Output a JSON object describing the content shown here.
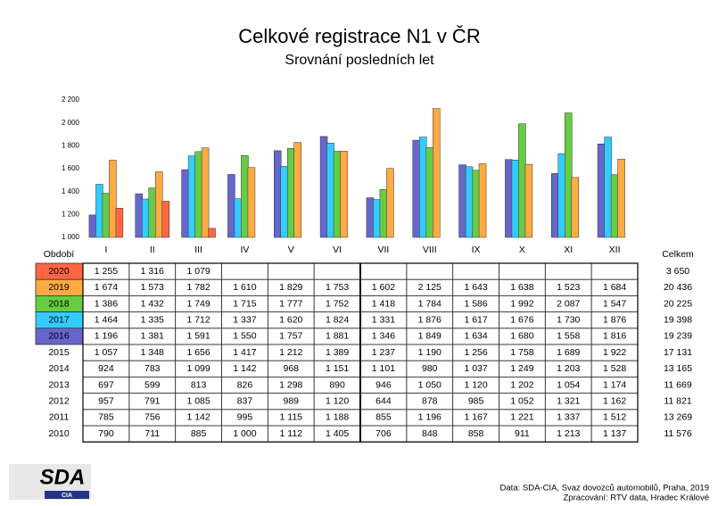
{
  "chart_data": {
    "type": "bar",
    "title": "Celkové registrace N1 v ČR",
    "subtitle": "Srovnání posledních let",
    "categories": [
      "I",
      "II",
      "III",
      "IV",
      "V",
      "VI",
      "VII",
      "VIII",
      "IX",
      "X",
      "XI",
      "XII"
    ],
    "ylim": [
      1000,
      2200
    ],
    "yticks": [
      {
        "value": 1000,
        "label": "1 000"
      },
      {
        "value": 1200,
        "label": "1 200"
      },
      {
        "value": 1400,
        "label": "1 400"
      },
      {
        "value": 1600,
        "label": "1 600"
      },
      {
        "value": 1800,
        "label": "1 800"
      },
      {
        "value": 2000,
        "label": "2 000"
      },
      {
        "value": 2200,
        "label": "2 200"
      }
    ],
    "series": [
      {
        "name": "2016",
        "color": "#6666cc",
        "values": [
          1196,
          1381,
          1591,
          1550,
          1757,
          1881,
          1346,
          1849,
          1634,
          1680,
          1558,
          1816
        ],
        "value_labels": [
          "1 196",
          "1 381",
          "1 591",
          "1 550",
          "1 757",
          "1 881",
          "1 346",
          "1 849",
          "1 634",
          "1 680",
          "1 558",
          "1 816"
        ],
        "total": "19 239"
      },
      {
        "name": "2017",
        "color": "#33ccff",
        "values": [
          1464,
          1335,
          1712,
          1337,
          1620,
          1824,
          1331,
          1876,
          1617,
          1676,
          1730,
          1876
        ],
        "value_labels": [
          "1 464",
          "1 335",
          "1 712",
          "1 337",
          "1 620",
          "1 824",
          "1 331",
          "1 876",
          "1 617",
          "1 676",
          "1 730",
          "1 876"
        ],
        "total": "19 398"
      },
      {
        "name": "2018",
        "color": "#66cc44",
        "values": [
          1386,
          1432,
          1749,
          1715,
          1777,
          1752,
          1418,
          1784,
          1586,
          1992,
          2087,
          1547
        ],
        "value_labels": [
          "1 386",
          "1 432",
          "1 749",
          "1 715",
          "1 777",
          "1 752",
          "1 418",
          "1 784",
          "1 586",
          "1 992",
          "2 087",
          "1 547"
        ],
        "total": "20 225"
      },
      {
        "name": "2019",
        "color": "#ffaa44",
        "values": [
          1674,
          1573,
          1782,
          1610,
          1829,
          1753,
          1602,
          2125,
          1643,
          1638,
          1523,
          1684
        ],
        "value_labels": [
          "1 674",
          "1 573",
          "1 782",
          "1 610",
          "1 829",
          "1 753",
          "1 602",
          "2 125",
          "1 643",
          "1 638",
          "1 523",
          "1 684"
        ],
        "total": "20 436"
      },
      {
        "name": "2020",
        "color": "#ff6644",
        "values": [
          1255,
          1316,
          1079,
          null,
          null,
          null,
          null,
          null,
          null,
          null,
          null,
          null
        ],
        "value_labels": [
          "1 255",
          "1 316",
          "1 079",
          null,
          null,
          null,
          null,
          null,
          null,
          null,
          null,
          null
        ],
        "total": "3 650"
      }
    ]
  },
  "table": {
    "period_header": "Období",
    "total_header": "Celkem",
    "rows": [
      {
        "name": "2015",
        "values": [
          "1 057",
          "1 348",
          "1 656",
          "1 417",
          "1 212",
          "1 389",
          "1 237",
          "1 190",
          "1 256",
          "1 758",
          "1 689",
          "1 922"
        ],
        "total": "17 131"
      },
      {
        "name": "2014",
        "values": [
          "924",
          "783",
          "1 099",
          "1 142",
          "968",
          "1 151",
          "1 101",
          "980",
          "1 037",
          "1 249",
          "1 203",
          "1 528"
        ],
        "total": "13 165"
      },
      {
        "name": "2013",
        "values": [
          "697",
          "599",
          "813",
          "826",
          "1 298",
          "890",
          "946",
          "1 050",
          "1 120",
          "1 202",
          "1 054",
          "1 174"
        ],
        "total": "11 669"
      },
      {
        "name": "2012",
        "values": [
          "957",
          "791",
          "1 085",
          "837",
          "989",
          "1 120",
          "644",
          "878",
          "985",
          "1 052",
          "1 321",
          "1 162"
        ],
        "total": "11 821"
      },
      {
        "name": "2011",
        "values": [
          "785",
          "756",
          "1 142",
          "995",
          "1 115",
          "1 188",
          "855",
          "1 196",
          "1 167",
          "1 221",
          "1 337",
          "1 512"
        ],
        "total": "13 269"
      },
      {
        "name": "2010",
        "values": [
          "790",
          "711",
          "885",
          "1 000",
          "1 112",
          "1 405",
          "706",
          "848",
          "858",
          "911",
          "1 213",
          "1 137"
        ],
        "total": "11 576"
      }
    ]
  },
  "logo": {
    "main": "SDA",
    "sub": "CIA"
  },
  "footer": {
    "source": "Data: SDA-CIA, Svaz dovozců automobilů, Praha, 2019",
    "processing": "Zpracování: RTV data, Hradec Králové"
  }
}
